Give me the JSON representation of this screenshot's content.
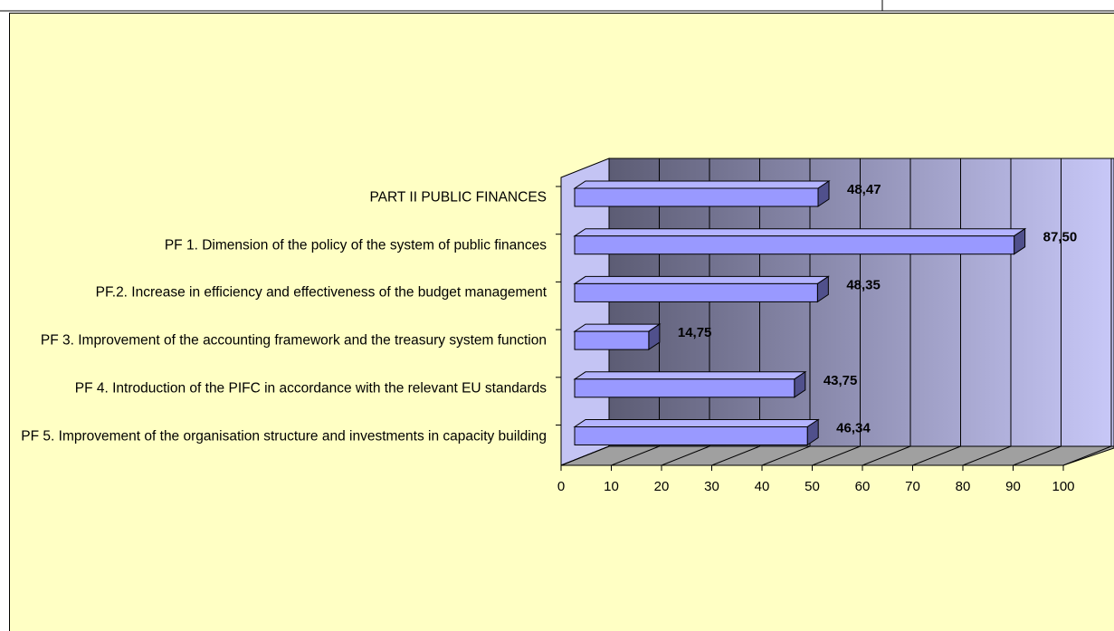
{
  "chart_data": {
    "type": "bar",
    "orientation": "horizontal",
    "categories": [
      "PART II PUBLIC FINANCES",
      "PF 1. Dimension of the policy of the system of public finances",
      "PF.2. Increase in efficiency and effectiveness of the budget management",
      "PF 3. Improvement of the accounting framework and the treasury system function",
      "PF 4. Introduction of the PIFC in accordance with the relevant EU standards",
      "PF 5. Improvement of the organisation structure and investments in capacity building"
    ],
    "values": [
      48.47,
      87.5,
      48.35,
      14.75,
      43.75,
      46.34
    ],
    "value_labels": [
      "48,47",
      "87,50",
      "48,35",
      "14,75",
      "43,75",
      "46,34"
    ],
    "color": "#9999ff",
    "xlim": [
      0,
      100
    ],
    "xticks": [
      0,
      10,
      20,
      30,
      40,
      50,
      60,
      70,
      80,
      90,
      100
    ],
    "grid": true
  }
}
